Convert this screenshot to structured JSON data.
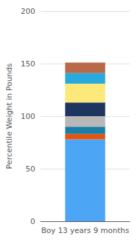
{
  "chart_data": {
    "type": "bar",
    "stacked": true,
    "categories": [
      "Boy 13 years 9 months"
    ],
    "series": [
      {
        "color": "#4da6f5",
        "values": [
          78
        ]
      },
      {
        "color": "#e8520a",
        "values": [
          5
        ]
      },
      {
        "color": "#1b7ea6",
        "values": [
          7
        ]
      },
      {
        "color": "#b8b8b8",
        "values": [
          10
        ]
      },
      {
        "color": "#1e3560",
        "values": [
          13
        ]
      },
      {
        "color": "#fde87a",
        "values": [
          18
        ]
      },
      {
        "color": "#29aadf",
        "values": [
          10
        ]
      },
      {
        "color": "#b8694a",
        "values": [
          10
        ]
      }
    ],
    "ylabel": "Percentile Weight in Pounds",
    "ylim": [
      0,
      200
    ],
    "yticks": [
      0,
      50,
      100,
      150,
      200
    ],
    "grid": true
  }
}
